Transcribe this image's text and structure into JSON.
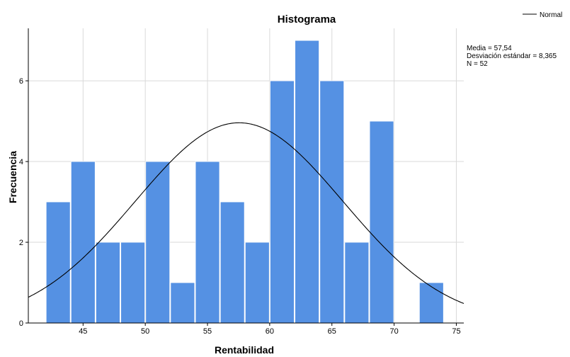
{
  "chart_data": {
    "type": "bar",
    "title": "Histograma",
    "xlabel": "Rentabilidad",
    "ylabel": "Frecuencia",
    "bin_width": 2,
    "bins": [
      {
        "start": 42,
        "end": 44,
        "count": 3
      },
      {
        "start": 44,
        "end": 46,
        "count": 4
      },
      {
        "start": 46,
        "end": 48,
        "count": 2
      },
      {
        "start": 48,
        "end": 50,
        "count": 2
      },
      {
        "start": 50,
        "end": 52,
        "count": 4
      },
      {
        "start": 52,
        "end": 54,
        "count": 1
      },
      {
        "start": 54,
        "end": 56,
        "count": 4
      },
      {
        "start": 56,
        "end": 58,
        "count": 3
      },
      {
        "start": 58,
        "end": 60,
        "count": 2
      },
      {
        "start": 60,
        "end": 62,
        "count": 6
      },
      {
        "start": 62,
        "end": 64,
        "count": 7
      },
      {
        "start": 64,
        "end": 66,
        "count": 6
      },
      {
        "start": 66,
        "end": 68,
        "count": 2
      },
      {
        "start": 68,
        "end": 70,
        "count": 5
      },
      {
        "start": 70,
        "end": 72,
        "count": 0
      },
      {
        "start": 72,
        "end": 74,
        "count": 1
      }
    ],
    "xlim": [
      40.6,
      75.6
    ],
    "ylim": [
      0,
      7.3
    ],
    "x_ticks": [
      45,
      50,
      55,
      60,
      65,
      70,
      75
    ],
    "y_ticks": [
      0,
      2,
      4,
      6
    ],
    "grid": true,
    "bar_color": "#5591e3",
    "normal_curve": {
      "legend_label": "Normal",
      "mean": 57.54,
      "sd": 8.365,
      "n": 52
    },
    "stats_lines": [
      "Media = 57,54",
      "Desviación estándar = 8,365",
      "N = 52"
    ],
    "legend_position": "top-right"
  }
}
